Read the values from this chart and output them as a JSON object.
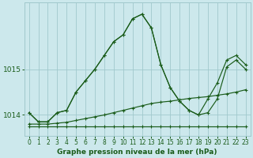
{
  "title": "Graphe pression niveau de la mer (hPa)",
  "bg_color": "#cce8ec",
  "grid_color": "#a0c8cc",
  "line_color": "#1a5c1a",
  "xlim": [
    -0.5,
    23.5
  ],
  "ylim": [
    1013.55,
    1016.45
  ],
  "yticks": [
    1014,
    1015
  ],
  "xticks": [
    0,
    1,
    2,
    3,
    4,
    5,
    6,
    7,
    8,
    9,
    10,
    11,
    12,
    13,
    14,
    15,
    16,
    17,
    18,
    19,
    20,
    21,
    22,
    23
  ],
  "series_main": [
    1014.05,
    1013.85,
    1013.85,
    1014.05,
    1014.1,
    1014.5,
    1014.75,
    1015.0,
    1015.3,
    1015.6,
    1015.75,
    1016.1,
    1016.2,
    1015.9,
    1015.1,
    1014.6,
    1014.3,
    1014.1,
    1014.0,
    1014.05,
    1014.35,
    1015.05,
    1015.2,
    1015.0
  ],
  "series_min": [
    1013.75,
    1013.75,
    1013.75,
    1013.75,
    1013.75,
    1013.75,
    1013.75,
    1013.75,
    1013.75,
    1013.75,
    1013.75,
    1013.75,
    1013.75,
    1013.75,
    1013.75,
    1013.75,
    1013.75,
    1013.75,
    1013.75,
    1013.75,
    1013.75,
    1013.75,
    1013.75,
    1013.75
  ],
  "series_max": [
    1014.05,
    1013.85,
    1013.85,
    1014.05,
    1014.1,
    1014.5,
    1014.75,
    1015.0,
    1015.3,
    1015.6,
    1015.75,
    1016.1,
    1016.2,
    1015.9,
    1015.1,
    1014.6,
    1014.3,
    1014.1,
    1014.0,
    1014.35,
    1014.7,
    1015.2,
    1015.3,
    1015.1
  ],
  "series_avg": [
    1013.8,
    1013.8,
    1013.8,
    1013.82,
    1013.84,
    1013.88,
    1013.92,
    1013.96,
    1014.0,
    1014.05,
    1014.1,
    1014.15,
    1014.2,
    1014.25,
    1014.28,
    1014.3,
    1014.33,
    1014.36,
    1014.38,
    1014.4,
    1014.43,
    1014.46,
    1014.5,
    1014.55
  ]
}
